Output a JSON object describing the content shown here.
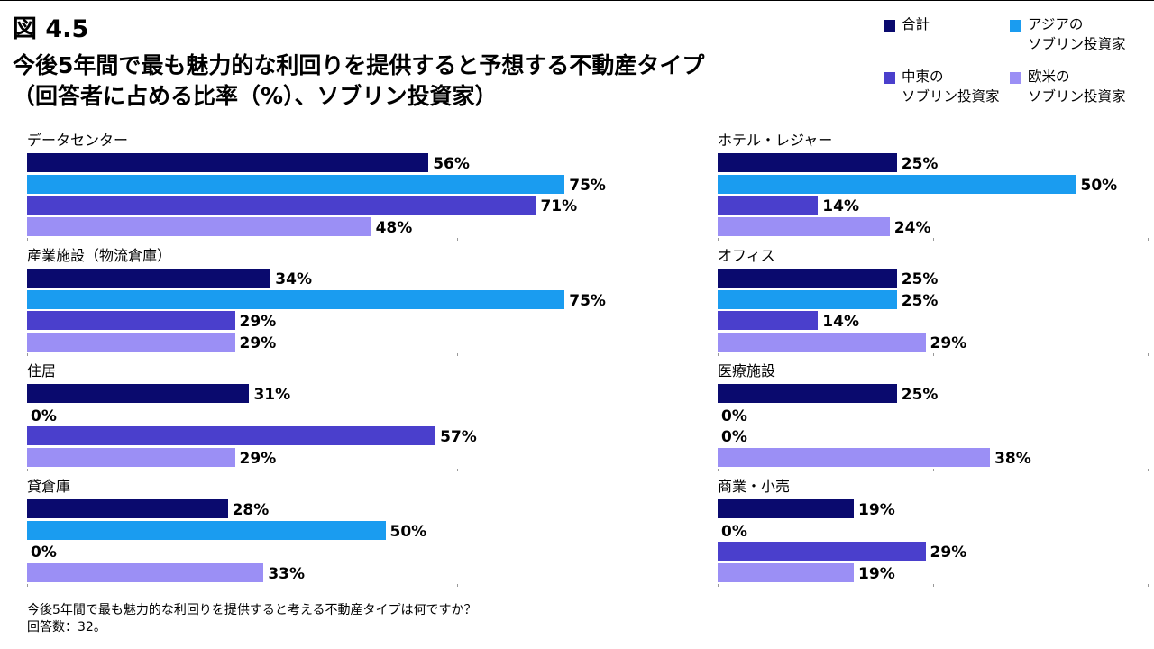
{
  "figure_label": "図 4.5",
  "title_line1": "今後5年間で最も魅力的な利回りを提供すると予想する不動産タイプ",
  "title_line2": "（回答者に占める比率（%）、ソブリン投資家）",
  "footnote_line1": "今後5年間で最も魅力的な利回りを提供すると考える不動産タイプは何ですか？",
  "footnote_line2": "回答数：32。",
  "colors": {
    "total": "#0a0a6e",
    "asia": "#1a9cf0",
    "middle_east": "#4a3fcc",
    "western": "#9b8ff5"
  },
  "legend": [
    {
      "key": "total",
      "line1": "合計",
      "line2": ""
    },
    {
      "key": "asia",
      "line1": "アジアの",
      "line2": "ソブリン投資家"
    },
    {
      "key": "middle_east",
      "line1": "中東の",
      "line2": "ソブリン投資家"
    },
    {
      "key": "western",
      "line1": "欧米の",
      "line2": "ソブリン投資家"
    }
  ],
  "chart_data": {
    "type": "bar",
    "orientation": "horizontal",
    "unit": "%",
    "xlim": [
      0,
      100
    ],
    "series_names": [
      "合計",
      "アジアのソブリン投資家",
      "中東のソブリン投資家",
      "欧米のソブリン投資家"
    ],
    "panels": [
      {
        "category": "データセンター",
        "values": [
          56,
          75,
          71,
          48
        ]
      },
      {
        "category": "産業施設（物流倉庫）",
        "values": [
          34,
          75,
          29,
          29
        ]
      },
      {
        "category": "住居",
        "values": [
          31,
          0,
          57,
          29
        ]
      },
      {
        "category": "貸倉庫",
        "values": [
          28,
          50,
          0,
          33
        ]
      },
      {
        "category": "ホテル・レジャー",
        "values": [
          25,
          50,
          14,
          24
        ]
      },
      {
        "category": "オフィス",
        "values": [
          25,
          25,
          14,
          29
        ]
      },
      {
        "category": "医療施設",
        "values": [
          25,
          0,
          0,
          38
        ]
      },
      {
        "category": "商業・小売",
        "values": [
          19,
          0,
          29,
          19
        ]
      }
    ]
  }
}
